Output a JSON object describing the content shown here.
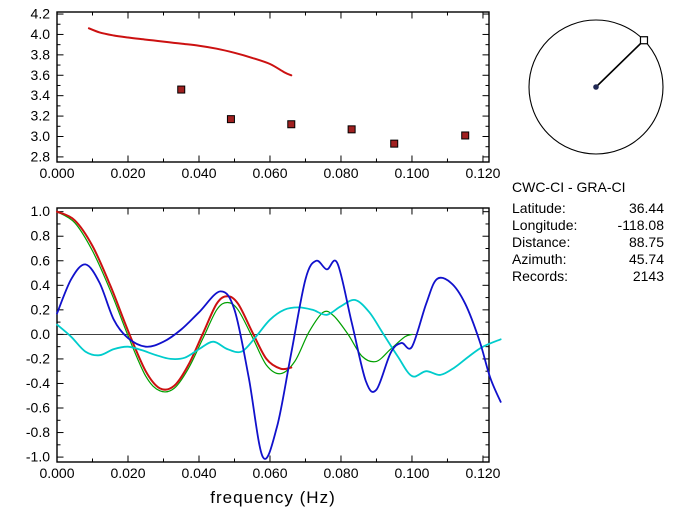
{
  "info": {
    "title": "CWC-CI - GRA-CI",
    "rows": [
      {
        "label": "Latitude:",
        "value": "36.44"
      },
      {
        "label": "Longitude:",
        "value": "-118.08"
      },
      {
        "label": "Distance:",
        "value": "88.75"
      },
      {
        "label": "Azimuth:",
        "value": "45.74"
      },
      {
        "label": "Records:",
        "value": "2143"
      }
    ]
  },
  "dial": {
    "azimuth_deg": 45.74
  },
  "chart_data": [
    {
      "type": "line",
      "title": "",
      "xlabel": "",
      "ylabel": "",
      "xlim": [
        0,
        0.1217
      ],
      "ylim": [
        2.75,
        4.22
      ],
      "xticks": [
        0,
        0.02,
        0.04,
        0.06,
        0.08,
        0.1,
        0.12
      ],
      "xtick_labels": [
        "0.000",
        "0.020",
        "0.040",
        "0.060",
        "0.080",
        "0.100",
        "0.120"
      ],
      "yticks": [
        2.8,
        3.0,
        3.2,
        3.4,
        3.6,
        3.8,
        4.0,
        4.2
      ],
      "ytick_labels": [
        "2.8",
        "3.0",
        "3.2",
        "3.4",
        "3.6",
        "3.8",
        "4.0",
        "4.2"
      ],
      "grid": false,
      "series": [
        {
          "name": "dispersion-curve-red",
          "color": "#cc1111",
          "width": 2,
          "points": [
            [
              0.009,
              4.06
            ],
            [
              0.012,
              4.02
            ],
            [
              0.016,
              3.99
            ],
            [
              0.02,
              3.97
            ],
            [
              0.025,
              3.95
            ],
            [
              0.03,
              3.93
            ],
            [
              0.035,
              3.91
            ],
            [
              0.04,
              3.89
            ],
            [
              0.045,
              3.86
            ],
            [
              0.05,
              3.82
            ],
            [
              0.055,
              3.77
            ],
            [
              0.06,
              3.71
            ],
            [
              0.064,
              3.63
            ],
            [
              0.066,
              3.6
            ]
          ]
        }
      ],
      "markers": {
        "name": "picked-velocity-marker",
        "color": "#a02020",
        "points": [
          [
            0.035,
            3.46
          ],
          [
            0.049,
            3.17
          ],
          [
            0.066,
            3.12
          ],
          [
            0.083,
            3.07
          ],
          [
            0.095,
            2.93
          ],
          [
            0.115,
            3.01
          ]
        ]
      }
    },
    {
      "type": "line",
      "title": "",
      "xlabel": "frequency (Hz)",
      "ylabel": "",
      "xlim": [
        0,
        0.1217
      ],
      "ylim": [
        -1.04,
        1.03
      ],
      "xticks": [
        0,
        0.02,
        0.04,
        0.06,
        0.08,
        0.1,
        0.12
      ],
      "xtick_labels": [
        "0.000",
        "0.020",
        "0.040",
        "0.060",
        "0.080",
        "0.100",
        "0.120"
      ],
      "yticks": [
        -1.0,
        -0.8,
        -0.6,
        -0.4,
        -0.2,
        0.0,
        0.2,
        0.4,
        0.6,
        0.8,
        1.0
      ],
      "ytick_labels": [
        "-1.0",
        "-0.8",
        "-0.6",
        "-0.4",
        "-0.2",
        "0.0",
        "0.2",
        "0.4",
        "0.6",
        "0.8",
        "1.0"
      ],
      "zero_line": true,
      "grid": false,
      "series": [
        {
          "name": "green-curve",
          "color": "#00a000",
          "width": 1.2,
          "points": [
            [
              0,
              1.0
            ],
            [
              0.005,
              0.91
            ],
            [
              0.01,
              0.68
            ],
            [
              0.015,
              0.36
            ],
            [
              0.02,
              -0.01
            ],
            [
              0.025,
              -0.34
            ],
            [
              0.029,
              -0.46
            ],
            [
              0.033,
              -0.44
            ],
            [
              0.037,
              -0.28
            ],
            [
              0.041,
              -0.04
            ],
            [
              0.045,
              0.2
            ],
            [
              0.048,
              0.26
            ],
            [
              0.051,
              0.2
            ],
            [
              0.055,
              -0.02
            ],
            [
              0.059,
              -0.25
            ],
            [
              0.063,
              -0.32
            ],
            [
              0.067,
              -0.22
            ],
            [
              0.071,
              0.02
            ],
            [
              0.075,
              0.18
            ],
            [
              0.078,
              0.15
            ],
            [
              0.082,
              0.0
            ],
            [
              0.086,
              -0.18
            ],
            [
              0.09,
              -0.22
            ],
            [
              0.094,
              -0.12
            ],
            [
              0.098,
              -0.02
            ],
            [
              0.1,
              0.0
            ]
          ]
        },
        {
          "name": "red-curve",
          "color": "#cc1111",
          "width": 2,
          "points": [
            [
              0,
              1.0
            ],
            [
              0.005,
              0.93
            ],
            [
              0.01,
              0.72
            ],
            [
              0.015,
              0.4
            ],
            [
              0.02,
              0.03
            ],
            [
              0.025,
              -0.3
            ],
            [
              0.029,
              -0.44
            ],
            [
              0.033,
              -0.42
            ],
            [
              0.037,
              -0.25
            ],
            [
              0.041,
              0.0
            ],
            [
              0.045,
              0.25
            ],
            [
              0.048,
              0.31
            ],
            [
              0.051,
              0.25
            ],
            [
              0.055,
              0.02
            ],
            [
              0.059,
              -0.2
            ],
            [
              0.063,
              -0.28
            ],
            [
              0.066,
              -0.27
            ]
          ]
        },
        {
          "name": "cyan-curve",
          "color": "#00cccc",
          "width": 1.8,
          "points": [
            [
              0,
              0.08
            ],
            [
              0.004,
              -0.02
            ],
            [
              0.008,
              -0.14
            ],
            [
              0.012,
              -0.17
            ],
            [
              0.016,
              -0.12
            ],
            [
              0.02,
              -0.1
            ],
            [
              0.024,
              -0.13
            ],
            [
              0.028,
              -0.17
            ],
            [
              0.032,
              -0.2
            ],
            [
              0.036,
              -0.19
            ],
            [
              0.04,
              -0.12
            ],
            [
              0.044,
              -0.06
            ],
            [
              0.048,
              -0.12
            ],
            [
              0.052,
              -0.14
            ],
            [
              0.056,
              -0.02
            ],
            [
              0.06,
              0.12
            ],
            [
              0.064,
              0.2
            ],
            [
              0.068,
              0.22
            ],
            [
              0.072,
              0.2
            ],
            [
              0.076,
              0.16
            ],
            [
              0.08,
              0.23
            ],
            [
              0.084,
              0.28
            ],
            [
              0.088,
              0.18
            ],
            [
              0.092,
              0.0
            ],
            [
              0.096,
              -0.18
            ],
            [
              0.1,
              -0.34
            ],
            [
              0.104,
              -0.3
            ],
            [
              0.108,
              -0.33
            ],
            [
              0.112,
              -0.27
            ],
            [
              0.116,
              -0.18
            ],
            [
              0.12,
              -0.1
            ],
            [
              0.125,
              -0.04
            ]
          ]
        },
        {
          "name": "blue-curve",
          "color": "#1111cc",
          "width": 1.8,
          "points": [
            [
              0,
              0.17
            ],
            [
              0.004,
              0.45
            ],
            [
              0.008,
              0.57
            ],
            [
              0.012,
              0.42
            ],
            [
              0.016,
              0.12
            ],
            [
              0.02,
              -0.03
            ],
            [
              0.025,
              -0.1
            ],
            [
              0.03,
              -0.06
            ],
            [
              0.035,
              0.04
            ],
            [
              0.04,
              0.18
            ],
            [
              0.046,
              0.35
            ],
            [
              0.05,
              0.2
            ],
            [
              0.054,
              -0.35
            ],
            [
              0.058,
              -1.0
            ],
            [
              0.062,
              -0.75
            ],
            [
              0.066,
              -0.15
            ],
            [
              0.07,
              0.45
            ],
            [
              0.073,
              0.6
            ],
            [
              0.076,
              0.53
            ],
            [
              0.079,
              0.58
            ],
            [
              0.083,
              0.1
            ],
            [
              0.087,
              -0.38
            ],
            [
              0.09,
              -0.45
            ],
            [
              0.094,
              -0.15
            ],
            [
              0.097,
              -0.07
            ],
            [
              0.1,
              -0.1
            ],
            [
              0.104,
              0.25
            ],
            [
              0.107,
              0.45
            ],
            [
              0.111,
              0.42
            ],
            [
              0.115,
              0.25
            ],
            [
              0.119,
              -0.05
            ],
            [
              0.122,
              -0.35
            ],
            [
              0.125,
              -0.55
            ]
          ]
        }
      ]
    }
  ]
}
